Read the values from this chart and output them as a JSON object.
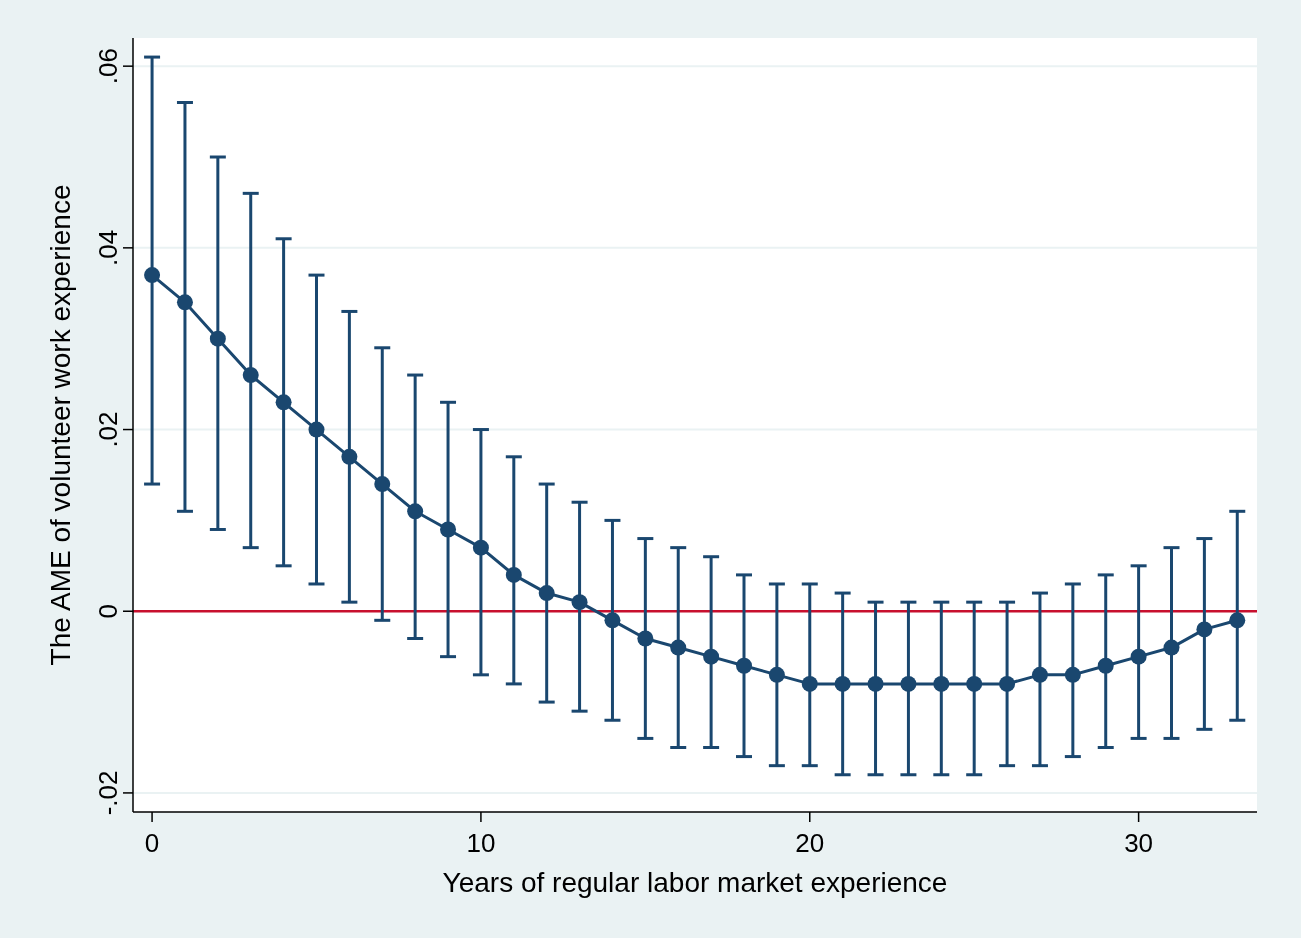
{
  "chart_data": {
    "type": "line",
    "xlabel": "Years of regular labor market experience",
    "ylabel": "The AME of volunteer work experience",
    "x": [
      0,
      1,
      2,
      3,
      4,
      5,
      6,
      7,
      8,
      9,
      10,
      11,
      12,
      13,
      14,
      15,
      16,
      17,
      18,
      19,
      20,
      21,
      22,
      23,
      24,
      25,
      26,
      27,
      28,
      29,
      30,
      31,
      32,
      33
    ],
    "series": [
      {
        "color": "#1a476f",
        "values": [
          0.037,
          0.034,
          0.03,
          0.026,
          0.023,
          0.02,
          0.017,
          0.014,
          0.011,
          0.009,
          0.007,
          0.004,
          0.002,
          0.001,
          -0.001,
          -0.003,
          -0.004,
          -0.005,
          -0.006,
          -0.007,
          -0.008,
          -0.008,
          -0.008,
          -0.008,
          -0.008,
          -0.008,
          -0.008,
          -0.007,
          -0.007,
          -0.006,
          -0.005,
          -0.004,
          -0.002,
          -0.001
        ],
        "errors": [
          [
            0.014,
            0.061
          ],
          [
            0.011,
            0.056
          ],
          [
            0.009,
            0.05
          ],
          [
            0.007,
            0.046
          ],
          [
            0.005,
            0.041
          ],
          [
            0.003,
            0.037
          ],
          [
            0.001,
            0.033
          ],
          [
            -0.001,
            0.029
          ],
          [
            -0.003,
            0.026
          ],
          [
            -0.005,
            0.023
          ],
          [
            -0.007,
            0.02
          ],
          [
            -0.008,
            0.017
          ],
          [
            -0.01,
            0.014
          ],
          [
            -0.011,
            0.012
          ],
          [
            -0.012,
            0.01
          ],
          [
            -0.014,
            0.008
          ],
          [
            -0.015,
            0.007
          ],
          [
            -0.015,
            0.006
          ],
          [
            -0.016,
            0.004
          ],
          [
            -0.017,
            0.003
          ],
          [
            -0.017,
            0.003
          ],
          [
            -0.018,
            0.002
          ],
          [
            -0.018,
            0.001
          ],
          [
            -0.018,
            0.001
          ],
          [
            -0.018,
            0.001
          ],
          [
            -0.018,
            0.001
          ],
          [
            -0.017,
            0.001
          ],
          [
            -0.017,
            0.002
          ],
          [
            -0.016,
            0.003
          ],
          [
            -0.015,
            0.004
          ],
          [
            -0.014,
            0.005
          ],
          [
            -0.014,
            0.007
          ],
          [
            -0.013,
            0.008
          ],
          [
            -0.012,
            0.011
          ]
        ]
      }
    ],
    "xlim": [
      -0.58,
      33.6
    ],
    "ylim": [
      -0.0221,
      0.0631
    ],
    "xticks": [
      0,
      10,
      20,
      30
    ],
    "yticks": [
      {
        "value": -0.02,
        "label": "-.02"
      },
      {
        "value": 0,
        "label": "0"
      },
      {
        "value": 0.02,
        "label": ".02"
      },
      {
        "value": 0.04,
        "label": ".04"
      },
      {
        "value": 0.06,
        "label": ".06"
      }
    ],
    "grid": "y",
    "marker": "circle",
    "line_style": "solid",
    "ref_lines": [
      {
        "axis": "y",
        "value": 0,
        "color": "#c8102e"
      }
    ]
  }
}
